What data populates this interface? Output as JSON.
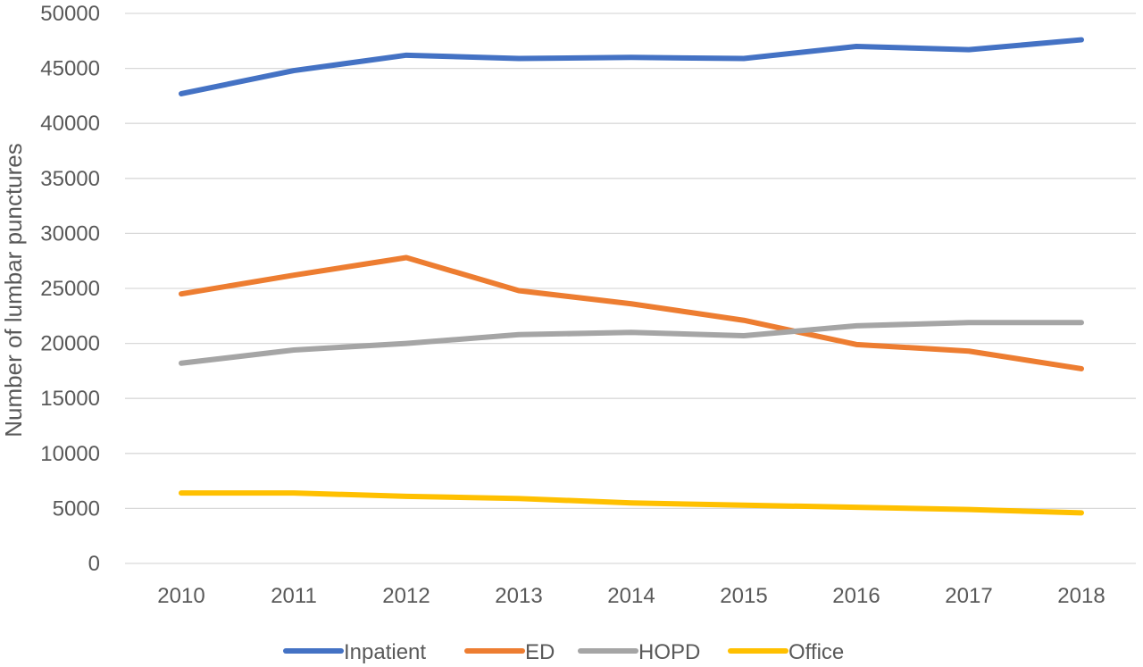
{
  "chart_data": {
    "type": "line",
    "title": "",
    "xlabel": "",
    "ylabel": "Number of lumbar punctures",
    "categories": [
      "2010",
      "2011",
      "2012",
      "2013",
      "2014",
      "2015",
      "2016",
      "2017",
      "2018"
    ],
    "yticks": [
      "0",
      "5000",
      "10000",
      "15000",
      "20000",
      "25000",
      "30000",
      "35000",
      "40000",
      "45000",
      "50000"
    ],
    "ylim": [
      0,
      50000
    ],
    "grid": true,
    "legend_position": "bottom",
    "series": [
      {
        "name": "Inpatient",
        "color": "#4472c4",
        "values": [
          42700,
          44800,
          46200,
          45900,
          46000,
          45900,
          47000,
          46700,
          47600
        ]
      },
      {
        "name": "ED",
        "color": "#ed7d31",
        "values": [
          24500,
          26200,
          27800,
          24800,
          23600,
          22100,
          19900,
          19300,
          17700
        ]
      },
      {
        "name": "HOPD",
        "color": "#a5a5a5",
        "values": [
          18200,
          19400,
          20000,
          20800,
          21000,
          20700,
          21600,
          21900,
          21900
        ]
      },
      {
        "name": "Office",
        "color": "#ffc000",
        "values": [
          6400,
          6400,
          6100,
          5900,
          5500,
          5300,
          5100,
          4900,
          4600
        ]
      }
    ]
  }
}
